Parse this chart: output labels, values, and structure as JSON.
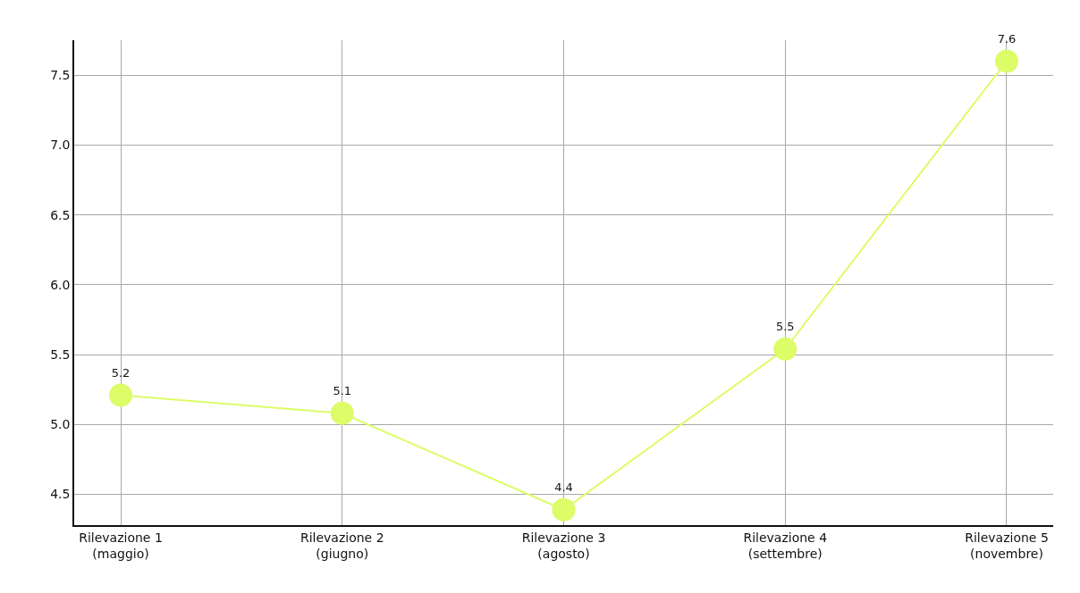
{
  "chart_data": {
    "type": "line",
    "categories": [
      "Rilevazione 1\n(maggio)",
      "Rilevazione 2\n(giugno)",
      "Rilevazione 3\n(agosto)",
      "Rilevazione 4\n(settembre)",
      "Rilevazione 5\n(novembre)"
    ],
    "series": [
      {
        "color": "#dcfc68",
        "values": [
          5.21,
          5.08,
          4.39,
          5.54,
          7.6
        ],
        "value_labels": [
          "5.2",
          "5.1",
          "4.4",
          "5.5",
          "7.6"
        ]
      }
    ],
    "ylim": [
      4.28,
      7.75
    ],
    "yticks": [
      4.5,
      {
        "value": 5,
        "label": "5.0"
      },
      5.5,
      {
        "value": 6,
        "label": "6.0"
      },
      6.5,
      {
        "value": 7,
        "label": "7.0"
      },
      7.5
    ],
    "grid": true,
    "marker": "circle",
    "line_style": "solid"
  }
}
